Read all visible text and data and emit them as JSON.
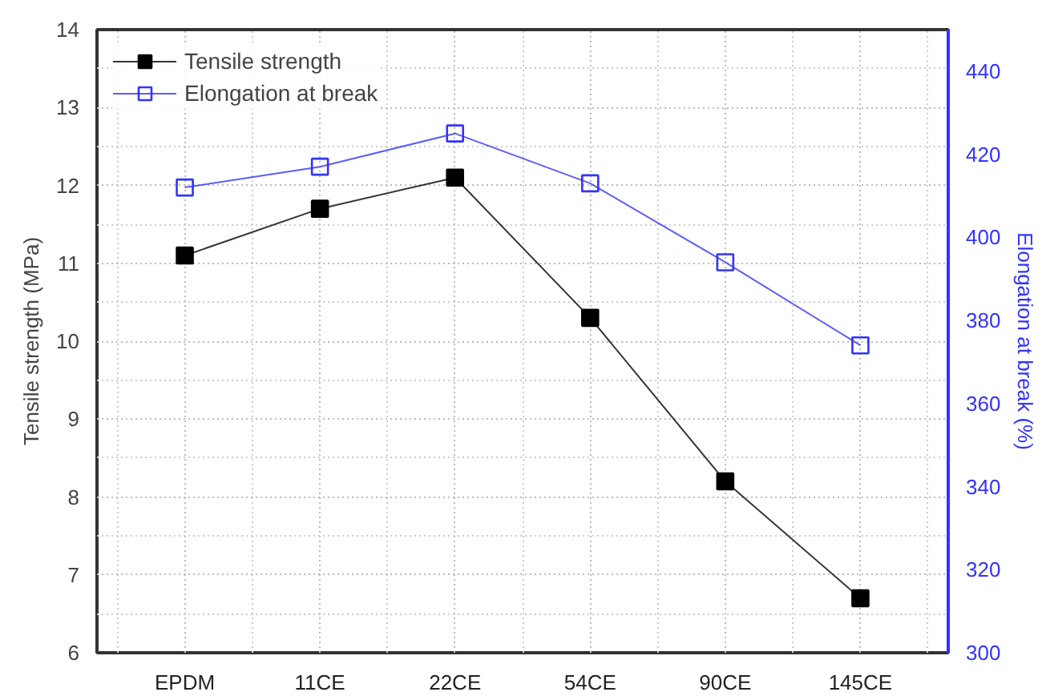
{
  "chart_data": {
    "type": "line",
    "categories": [
      "EPDM",
      "11CE",
      "22CE",
      "54CE",
      "90CE",
      "145CE"
    ],
    "ylabel": "Tensile strength (MPa)",
    "y2label": "Elongation at break (%)",
    "ylim": [
      6,
      14
    ],
    "yticks": [
      6,
      7,
      8,
      9,
      10,
      11,
      12,
      13,
      14
    ],
    "y2lim": [
      300,
      450
    ],
    "y2ticks": [
      300,
      320,
      340,
      360,
      380,
      400,
      420,
      440
    ],
    "series": [
      {
        "name": "Tensile strength",
        "color": "#000000",
        "values": [
          11.1,
          11.7,
          12.1,
          10.3,
          8.2,
          6.7
        ]
      },
      {
        "name": "Elongation at break",
        "color": "#3333ff",
        "axis": "y2",
        "values": [
          412,
          417,
          425,
          413,
          394,
          374
        ]
      }
    ],
    "marker": "square",
    "grid": true,
    "legend": "top left"
  }
}
